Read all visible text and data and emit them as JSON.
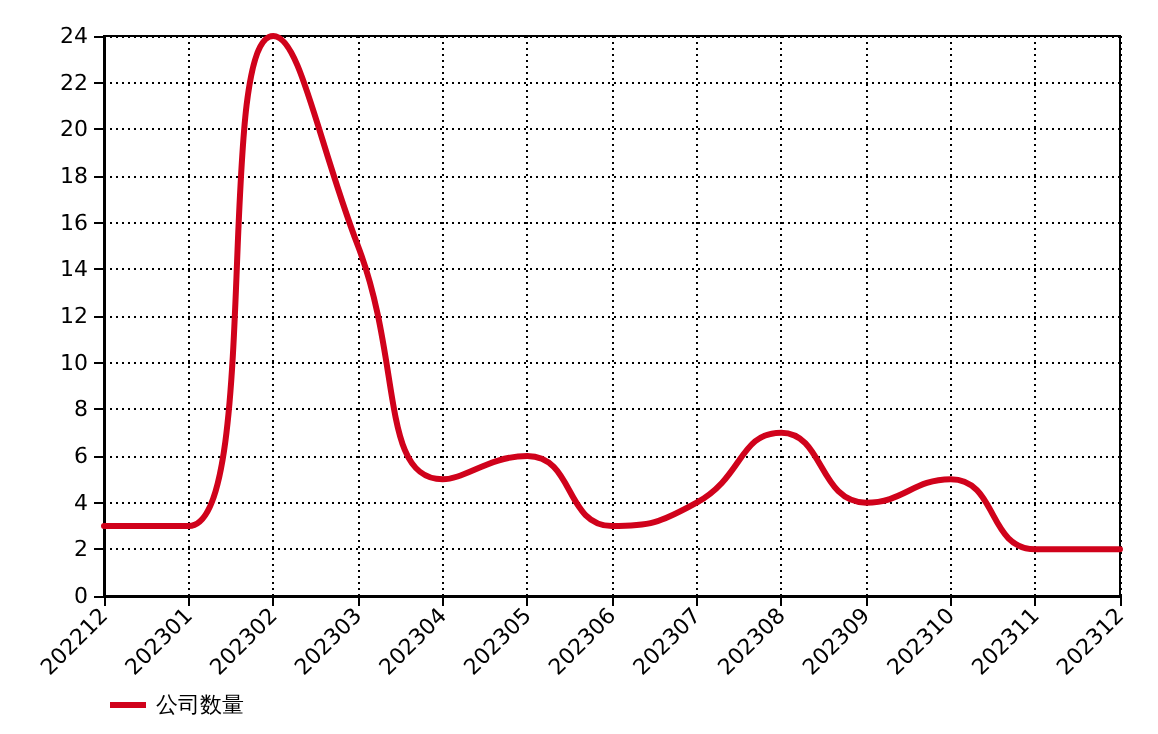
{
  "chart_data": {
    "type": "line",
    "categories": [
      "202212",
      "202301",
      "202302",
      "202303",
      "202304",
      "202305",
      "202306",
      "202307",
      "202308",
      "202309",
      "202310",
      "202311",
      "202312"
    ],
    "series": [
      {
        "name": "公司数量",
        "color": "#d0021b",
        "values": [
          3,
          3,
          24,
          15,
          5,
          6,
          3,
          4,
          7,
          4,
          5,
          2,
          2
        ]
      }
    ],
    "ylim": [
      0,
      24
    ],
    "yticks": [
      0,
      2,
      4,
      6,
      8,
      10,
      12,
      14,
      16,
      18,
      20,
      22,
      24
    ],
    "grid": true,
    "legend": "bottom left",
    "marker": "none",
    "line_style": "solid"
  }
}
